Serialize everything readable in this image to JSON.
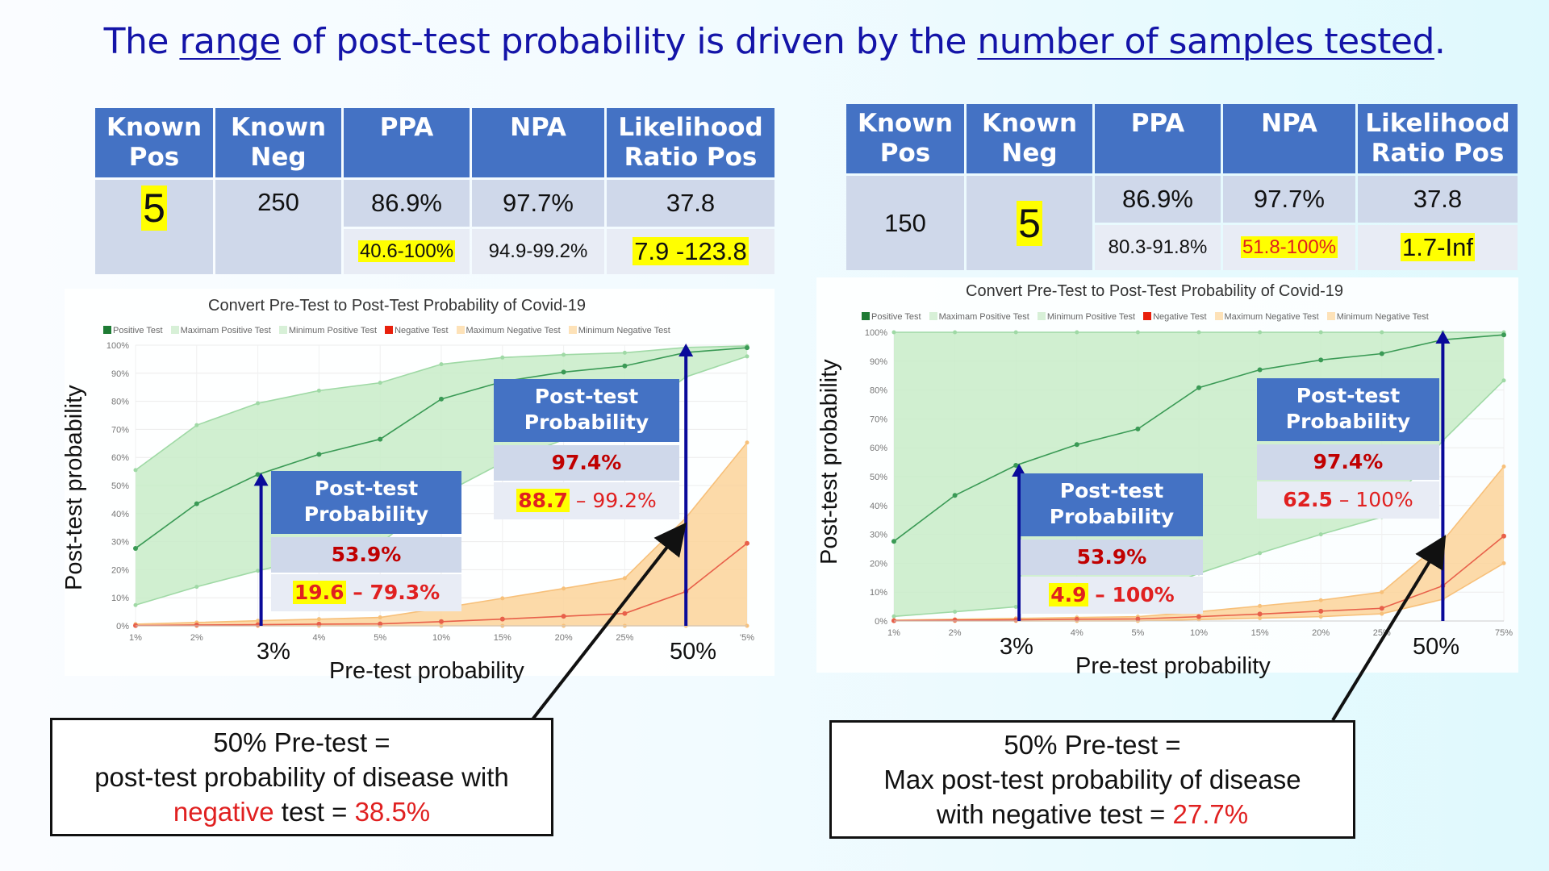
{
  "title": {
    "part1": "The ",
    "range_word": "range",
    "part2": " of post-test probability is driven by the ",
    "samples_phrase": "number of samples tested",
    "part3": "."
  },
  "tables": [
    {
      "headers": [
        "Known Pos",
        "Known Neg",
        "PPA",
        "NPA",
        "Likelihood Ratio Pos"
      ],
      "header_lines": [
        [
          "Known",
          "Pos"
        ],
        [
          "Known",
          "Neg"
        ],
        [
          "PPA",
          ""
        ],
        [
          "NPA",
          ""
        ],
        [
          "Likelihood",
          "Ratio Pos"
        ]
      ],
      "known_pos": "5",
      "known_neg": "250",
      "ppa": "86.9%",
      "npa": "97.7%",
      "lr_pos": "37.8",
      "ppa_ci": "40.6-100%",
      "npa_ci": "94.9-99.2%",
      "lr_pos_ci": "7.9 -123.8",
      "highlighted": [
        "known_pos",
        "ppa_ci",
        "lr_pos_ci"
      ]
    },
    {
      "headers": [
        "Known Pos",
        "Known Neg",
        "PPA",
        "NPA",
        "Likelihood Ratio Pos"
      ],
      "header_lines": [
        [
          "Known",
          "Pos"
        ],
        [
          "Known",
          "Neg"
        ],
        [
          "PPA",
          ""
        ],
        [
          "NPA",
          ""
        ],
        [
          "Likelihood",
          "Ratio Pos"
        ]
      ],
      "known_pos": "150",
      "known_neg": "5",
      "ppa": "86.9%",
      "npa": "97.7%",
      "lr_pos": "37.8",
      "ppa_ci": "80.3-91.8%",
      "npa_ci": "51.8-100%",
      "lr_pos_ci": "1.7-Inf",
      "highlighted": [
        "known_neg",
        "npa_ci",
        "lr_pos_ci"
      ]
    }
  ],
  "colors": {
    "title": "#1414a8",
    "header_bg": "#4472c4",
    "row1_bg": "#cfd8ea",
    "row2_bg": "#e8ecf5",
    "highlight": "#ffff00",
    "red_text": "#e02020",
    "positive_line": "#3a9a55",
    "positive_band": "#c8ecc8",
    "negative_line": "#e8604a",
    "negative_band": "#fcd49a",
    "arrow": "#0a0a9a"
  },
  "charts": [
    {
      "title": "Convert Pre-Test to Post-Test Probability of Covid-19",
      "legend": [
        "Positive Test",
        "Maximam Positive Test",
        "Minimum Positive Test",
        "Negative Test",
        "Maximum Negative Test",
        "Minimum Negative Test"
      ],
      "legend_colors": [
        "#1e7b34",
        "#d7f0d7",
        "#d7f0d7",
        "#e8200c",
        "#fde2b8",
        "#fde2b8"
      ],
      "ylabel": "Post-test probability",
      "xlabel": "Pre-test probability",
      "y_ticks": [
        "100%",
        "90%",
        "80%",
        "70%",
        "60%",
        "50%",
        "40%",
        "30%",
        "20%",
        "10%",
        "0%"
      ],
      "x_ticks": [
        "1%",
        "2%",
        "",
        "4%",
        "5%",
        "10%",
        "15%",
        "20%",
        "25%",
        "",
        "'5%"
      ],
      "marker_3": "3%",
      "marker_50": "50%",
      "box_low": {
        "header": [
          "Post-test",
          "Probability"
        ],
        "value": "53.9%",
        "range_low": "19.6",
        "range_sep": " – ",
        "range_high": "79.3%"
      },
      "box_high": {
        "header": [
          "Post-test",
          "Probability"
        ],
        "value": "97.4%",
        "range_low": "88.7",
        "range_sep": " – ",
        "range_high": "99.2%"
      },
      "callout": {
        "line1": "50% Pre-test =",
        "line2": "post-test probability of disease with",
        "line3_red1": "negative",
        "line3_mid": " test = ",
        "line3_red2": "38.5%"
      }
    },
    {
      "title": "Convert Pre-Test to Post-Test Probability of Covid-19",
      "legend": [
        "Positive Test",
        "Maximam Positive Test",
        "Minimum Positive Test",
        "Negative Test",
        "Maximum Negative Test",
        "Minimum Negative Test"
      ],
      "legend_colors": [
        "#1e7b34",
        "#d7f0d7",
        "#d7f0d7",
        "#e8200c",
        "#fde2b8",
        "#fde2b8"
      ],
      "ylabel": "Post-test probability",
      "xlabel": "Pre-test probability",
      "y_ticks": [
        "100%",
        "90%",
        "80%",
        "70%",
        "60%",
        "50%",
        "40%",
        "30%",
        "20%",
        "10%",
        "0%"
      ],
      "x_ticks": [
        "1%",
        "2%",
        "",
        "4%",
        "5%",
        "10%",
        "15%",
        "20%",
        "25%",
        "",
        "75%"
      ],
      "marker_3": "3%",
      "marker_50": "50%",
      "box_low": {
        "header": [
          "Post-test",
          "Probability"
        ],
        "value": "53.9%",
        "range_low": "4.9",
        "range_sep": " – ",
        "range_high": "100%"
      },
      "box_high": {
        "header": [
          "Post-test",
          "Probability"
        ],
        "value": "97.4%",
        "range_low": "62.5",
        "range_sep": " – ",
        "range_high": "100%"
      },
      "callout": {
        "line1": "50% Pre-test =",
        "line2": "Max post-test probability of disease",
        "line3_mid": "with negative test = ",
        "line3_red2": "27.7%"
      }
    }
  ],
  "chart_data": [
    {
      "type": "area",
      "title": "Convert Pre-Test to Post-Test Probability of Covid-19",
      "xlabel": "Pre-test probability",
      "ylabel": "Post-test probability",
      "categories": [
        "1%",
        "2%",
        "3%",
        "4%",
        "5%",
        "10%",
        "15%",
        "20%",
        "25%",
        "50%",
        "75%"
      ],
      "ylim": [
        0,
        100
      ],
      "grid": true,
      "legend_position": "top",
      "series": [
        {
          "name": "Positive Test",
          "values": [
            27.6,
            43.5,
            53.9,
            61.1,
            66.5,
            80.8,
            87.0,
            90.4,
            92.6,
            97.4,
            99.1
          ]
        },
        {
          "name": "Maximam Positive Test",
          "values": [
            55.5,
            71.5,
            79.3,
            83.8,
            86.6,
            93.2,
            95.6,
            96.6,
            97.3,
            99.2,
            99.7
          ]
        },
        {
          "name": "Minimum Positive Test",
          "values": [
            7.4,
            13.9,
            19.6,
            24.8,
            29.3,
            46.7,
            58.1,
            66.3,
            72.5,
            88.7,
            96.0
          ]
        },
        {
          "name": "Negative Test",
          "values": [
            0.1,
            0.3,
            0.4,
            0.6,
            0.7,
            1.5,
            2.4,
            3.4,
            4.4,
            12.2,
            29.4
          ]
        },
        {
          "name": "Maximum Negative Test",
          "values": [
            0.6,
            1.2,
            1.8,
            2.4,
            3.0,
            6.3,
            9.8,
            13.3,
            17.0,
            38.5,
            65.3
          ]
        },
        {
          "name": "Minimum Negative Test",
          "values": [
            0.0,
            0.0,
            0.0,
            0.0,
            0.0,
            0.0,
            0.0,
            0.0,
            0.0,
            0.0,
            0.0
          ]
        }
      ],
      "annotations": [
        {
          "x": "3%",
          "text": "Post-test Probability 53.9%, 19.6 – 79.3%"
        },
        {
          "x": "50%",
          "text": "Post-test Probability 97.4%, 88.7 – 99.2%"
        }
      ]
    },
    {
      "type": "area",
      "title": "Convert Pre-Test to Post-Test Probability of Covid-19",
      "xlabel": "Pre-test probability",
      "ylabel": "Post-test probability",
      "categories": [
        "1%",
        "2%",
        "3%",
        "4%",
        "5%",
        "10%",
        "15%",
        "20%",
        "25%",
        "50%",
        "75%"
      ],
      "ylim": [
        0,
        100
      ],
      "grid": true,
      "legend_position": "top",
      "series": [
        {
          "name": "Positive Test",
          "values": [
            27.6,
            43.5,
            53.9,
            61.1,
            66.5,
            80.8,
            87.0,
            90.4,
            92.6,
            97.4,
            99.1
          ]
        },
        {
          "name": "Maximam Positive Test",
          "values": [
            100,
            100,
            100,
            100,
            100,
            100,
            100,
            100,
            100,
            100,
            100
          ]
        },
        {
          "name": "Minimum Positive Test",
          "values": [
            1.6,
            3.2,
            4.9,
            6.5,
            8.2,
            16.5,
            23.5,
            30.0,
            36.0,
            62.5,
            83.3
          ]
        },
        {
          "name": "Negative Test",
          "values": [
            0.1,
            0.3,
            0.4,
            0.6,
            0.7,
            1.5,
            2.4,
            3.4,
            4.4,
            12.2,
            29.4
          ]
        },
        {
          "name": "Maximum Negative Test",
          "values": [
            0.3,
            0.6,
            0.9,
            1.2,
            1.5,
            3.2,
            5.2,
            7.2,
            10.0,
            27.7,
            53.5
          ]
        },
        {
          "name": "Minimum Negative Test",
          "values": [
            0.0,
            0.0,
            0.0,
            0.0,
            0.0,
            0.5,
            1.0,
            1.5,
            2.5,
            7.5,
            20.0
          ]
        }
      ],
      "annotations": [
        {
          "x": "3%",
          "text": "Post-test Probability 53.9%, 4.9 – 100%"
        },
        {
          "x": "50%",
          "text": "Post-test Probability 97.4%, 62.5 – 100%"
        }
      ]
    }
  ]
}
